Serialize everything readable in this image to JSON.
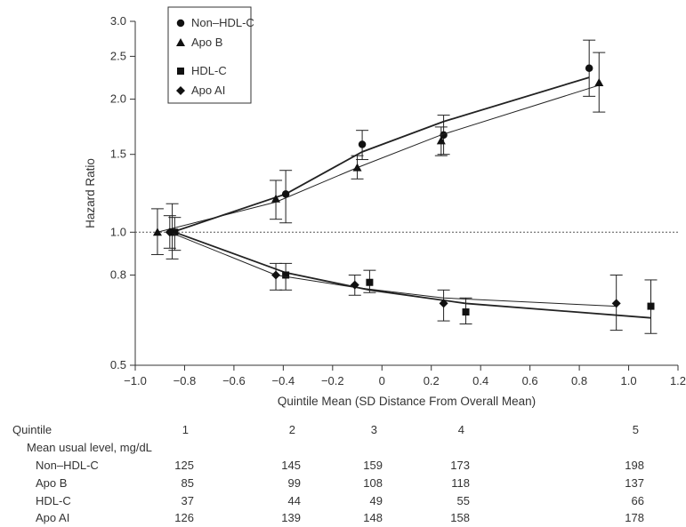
{
  "chart_data": {
    "type": "line",
    "title": "",
    "xlabel": "Quintile Mean (SD Distance From Overall Mean)",
    "ylabel": "Hazard Ratio",
    "xlim": [
      -1.0,
      1.2
    ],
    "ylim": [
      0.5,
      3.0
    ],
    "y_scale": "log",
    "xticks": [
      "−1.0",
      "−0.8",
      "−0.6",
      "−0.4",
      "−0.2",
      "0",
      "0.2",
      "0.4",
      "0.6",
      "0.8",
      "1.0",
      "1.2"
    ],
    "yticks": [
      "0.5",
      "0.8",
      "1.0",
      "1.5",
      "2.0",
      "2.5",
      "3.0"
    ],
    "reference_line": 1.0,
    "legend_position": "top-left",
    "series": [
      {
        "name": "Non–HDL-C",
        "marker": "circle",
        "x": [
          -0.85,
          -0.39,
          -0.08,
          0.25,
          0.84
        ],
        "y": [
          1.0,
          1.22,
          1.58,
          1.66,
          2.35
        ],
        "ci_low": [
          0.87,
          1.05,
          1.46,
          1.5,
          2.03
        ],
        "ci_high": [
          1.16,
          1.38,
          1.7,
          1.84,
          2.72
        ],
        "fit": [
          1.0,
          1.22,
          1.52,
          1.78,
          2.24
        ]
      },
      {
        "name": "Apo B",
        "marker": "triangle",
        "x": [
          -0.91,
          -0.43,
          -0.1,
          0.24,
          0.88
        ],
        "y": [
          1.0,
          1.19,
          1.4,
          1.61,
          2.18
        ],
        "ci_low": [
          0.89,
          1.07,
          1.32,
          1.49,
          1.87
        ],
        "ci_high": [
          1.13,
          1.31,
          1.49,
          1.73,
          2.55
        ],
        "fit": [
          1.0,
          1.17,
          1.4,
          1.66,
          2.15
        ]
      },
      {
        "name": "HDL-C",
        "marker": "square",
        "x": [
          -0.84,
          -0.39,
          -0.05,
          0.34,
          1.09
        ],
        "y": [
          1.0,
          0.8,
          0.77,
          0.66,
          0.68
        ],
        "ci_low": [
          0.91,
          0.74,
          0.73,
          0.62,
          0.59
        ],
        "ci_high": [
          1.08,
          0.85,
          0.82,
          0.71,
          0.78
        ],
        "fit": [
          1.0,
          0.81,
          0.74,
          0.69,
          0.64
        ]
      },
      {
        "name": "Apo AI",
        "marker": "diamond",
        "x": [
          -0.86,
          -0.43,
          -0.11,
          0.25,
          0.95
        ],
        "y": [
          1.0,
          0.8,
          0.76,
          0.69,
          0.69
        ],
        "ci_low": [
          0.92,
          0.74,
          0.72,
          0.63,
          0.6
        ],
        "ci_high": [
          1.09,
          0.85,
          0.8,
          0.74,
          0.8
        ],
        "fit": [
          1.0,
          0.8,
          0.75,
          0.71,
          0.68
        ]
      }
    ]
  },
  "table": {
    "header_label": "Quintile",
    "subheader_label": "Mean usual level, mg/dL",
    "quintiles": [
      "1",
      "2",
      "3",
      "4",
      "5"
    ],
    "rows": [
      {
        "label": "Non–HDL-C",
        "values": [
          "125",
          "145",
          "159",
          "173",
          "198"
        ]
      },
      {
        "label": "Apo B",
        "values": [
          "85",
          "99",
          "108",
          "118",
          "137"
        ]
      },
      {
        "label": "HDL-C",
        "values": [
          "37",
          "44",
          "49",
          "55",
          "66"
        ]
      },
      {
        "label": "Apo AI",
        "values": [
          "126",
          "139",
          "148",
          "158",
          "178"
        ]
      }
    ]
  }
}
